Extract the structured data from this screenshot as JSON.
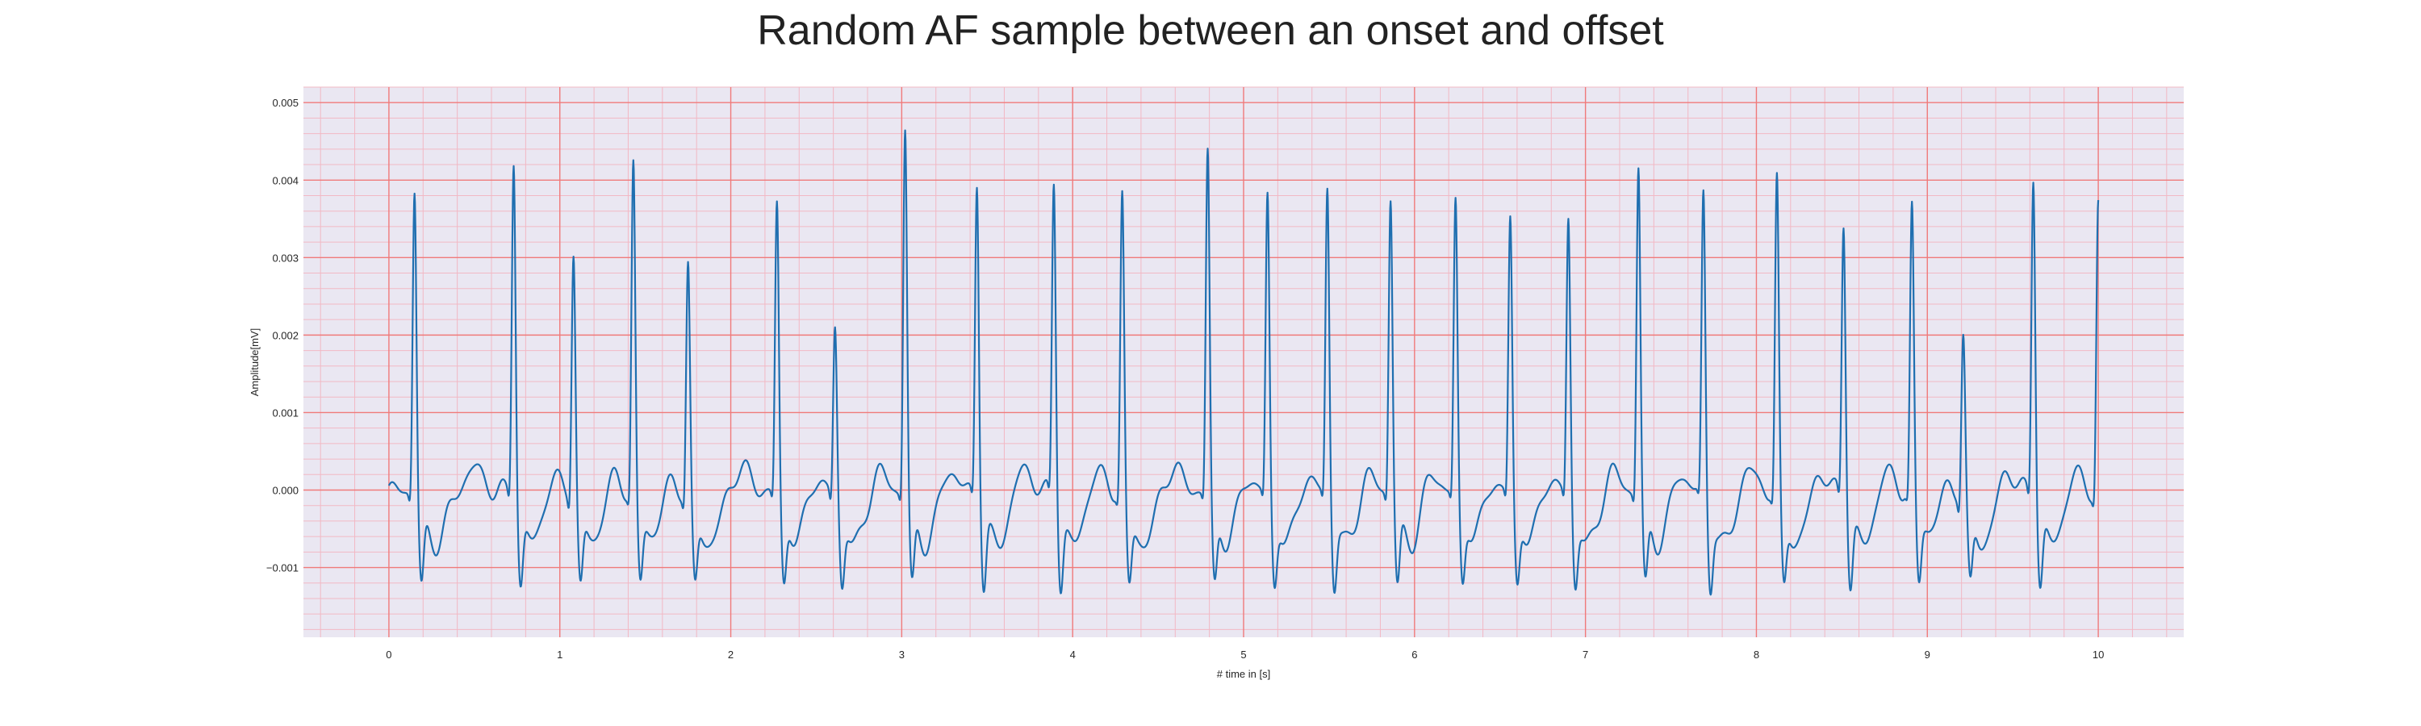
{
  "chart_data": {
    "type": "line",
    "title": "Random AF sample between an onset and offset",
    "xlabel": "# time in [s]",
    "ylabel": "Amplitude[mV]",
    "xlim": [
      -0.5,
      10.5
    ],
    "ylim": [
      -0.0019,
      0.0052
    ],
    "x_ticks": [
      0,
      1,
      2,
      3,
      4,
      5,
      6,
      7,
      8,
      9,
      10
    ],
    "x_tick_labels": [
      "0",
      "1",
      "2",
      "3",
      "4",
      "5",
      "6",
      "7",
      "8",
      "9",
      "10"
    ],
    "y_ticks": [
      -0.001,
      0.0,
      0.001,
      0.002,
      0.003,
      0.004,
      0.005
    ],
    "y_tick_labels": [
      "−0.001",
      "0.000",
      "0.001",
      "0.002",
      "0.003",
      "0.004",
      "0.005"
    ],
    "grid": true,
    "minor_grid": true,
    "x_range": [
      0,
      10
    ],
    "beats": [
      {
        "t": 0.15,
        "peak": 0.004
      },
      {
        "t": 0.73,
        "peak": 0.0044
      },
      {
        "t": 1.08,
        "peak": 0.0032
      },
      {
        "t": 1.43,
        "peak": 0.0043
      },
      {
        "t": 1.75,
        "peak": 0.003
      },
      {
        "t": 2.27,
        "peak": 0.0038
      },
      {
        "t": 2.61,
        "peak": 0.0022
      },
      {
        "t": 3.02,
        "peak": 0.0048
      },
      {
        "t": 3.44,
        "peak": 0.0041
      },
      {
        "t": 3.89,
        "peak": 0.0041
      },
      {
        "t": 4.29,
        "peak": 0.0039
      },
      {
        "t": 4.79,
        "peak": 0.0045
      },
      {
        "t": 5.14,
        "peak": 0.0039
      },
      {
        "t": 5.49,
        "peak": 0.004
      },
      {
        "t": 5.86,
        "peak": 0.0039
      },
      {
        "t": 6.24,
        "peak": 0.0038
      },
      {
        "t": 6.56,
        "peak": 0.0036
      },
      {
        "t": 6.9,
        "peak": 0.0036
      },
      {
        "t": 7.31,
        "peak": 0.0043
      },
      {
        "t": 7.69,
        "peak": 0.0039
      },
      {
        "t": 8.12,
        "peak": 0.0041
      },
      {
        "t": 8.51,
        "peak": 0.0036
      },
      {
        "t": 8.91,
        "peak": 0.0037
      },
      {
        "t": 9.21,
        "peak": 0.0021
      },
      {
        "t": 9.62,
        "peak": 0.0042
      },
      {
        "t": 10.0,
        "peak": 0.0038
      }
    ],
    "colors": {
      "line": "#1f6fb0",
      "background": "#eae7f2",
      "major_grid": "#f07a7a",
      "minor_grid": "#f2b8c4"
    }
  }
}
